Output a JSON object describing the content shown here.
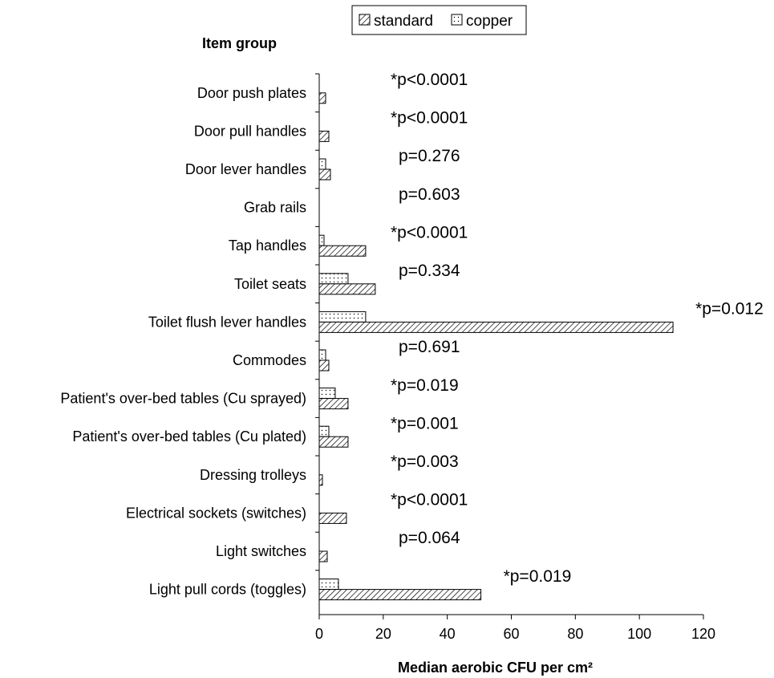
{
  "chart_data": {
    "type": "bar",
    "orientation": "horizontal",
    "ylabel": "Item group",
    "xlabel": "Median aerobic CFU per cm²",
    "xlim": [
      0,
      120
    ],
    "xticks": [
      0,
      20,
      40,
      60,
      80,
      100,
      120
    ],
    "grid": false,
    "legend_position": "top-center",
    "categories": [
      "Door push plates",
      "Door pull handles",
      "Door lever handles",
      "Grab rails",
      "Tap handles",
      "Toilet seats",
      "Toilet flush lever handles",
      "Commodes",
      "Patient's over-bed tables (Cu sprayed)",
      "Patient's over-bed tables (Cu plated)",
      "Dressing trolleys",
      "Electrical sockets (switches)",
      "Light switches",
      "Light pull cords (toggles)"
    ],
    "series": [
      {
        "name": "standard",
        "pattern": "hatched",
        "values": [
          2,
          3,
          3.5,
          0,
          14.5,
          17.5,
          110.5,
          3,
          9,
          9,
          1,
          8.5,
          2.5,
          50.5
        ]
      },
      {
        "name": "copper",
        "pattern": "dotted",
        "values": [
          0,
          0,
          2,
          0,
          1.5,
          9,
          14.5,
          2,
          5,
          3,
          0,
          0,
          0,
          6
        ]
      }
    ],
    "annotations": [
      "*p<0.0001",
      "*p<0.0001",
      "p=0.276",
      "p=0.603",
      "*p<0.0001",
      "p=0.334",
      "*p=0.012",
      "p=0.691",
      "*p=0.019",
      "*p=0.001",
      "*p=0.003",
      "*p<0.0001",
      "p=0.064",
      "*p=0.019"
    ]
  },
  "colors": {
    "bar_fill": "#ffffff",
    "bar_stroke": "#000000",
    "axis": "#000000"
  }
}
